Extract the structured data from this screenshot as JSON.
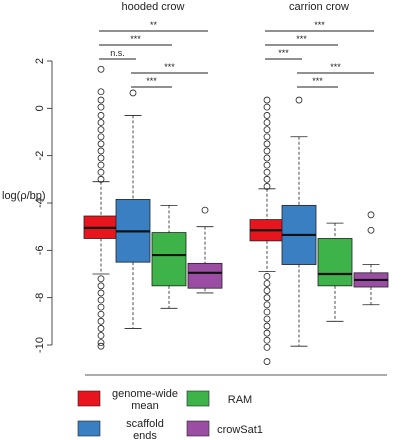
{
  "chart_data": {
    "type": "boxplot",
    "ylabel": "log(ρ/bp)",
    "ylim": [
      -10,
      2
    ],
    "yticks": [
      "2",
      "0",
      "-2",
      "-4",
      "-6",
      "-8",
      "-10"
    ],
    "categories": [
      "genome-wide mean",
      "scaffold ends",
      "RAM",
      "crowSat1"
    ],
    "colors": [
      "#e8141e",
      "#3a7fc1",
      "#3db34a",
      "#9b4da4"
    ],
    "legend": {
      "placement": "bottom",
      "labels": [
        "genome-wide\nmean",
        "scaffold\nends",
        "RAM",
        "crowSat1"
      ]
    },
    "groups": [
      {
        "name": "hooded crow",
        "boxes": [
          {
            "category": "genome-wide mean",
            "q1": -5.5,
            "median": -5.05,
            "q3": -4.55,
            "whisker_low": -7.0,
            "whisker_high": -3.1,
            "outliers_low": [
              -7.2,
              -7.5,
              -7.8,
              -8.1,
              -8.4,
              -8.7,
              -9.0,
              -9.3,
              -9.6,
              -9.9,
              -10.05
            ],
            "outliers_high": [
              -3.0,
              -2.7,
              -2.4,
              -2.1,
              -1.8,
              -1.5,
              -1.2,
              -0.9,
              -0.6,
              -0.3,
              0.05,
              0.35,
              0.7,
              1.65
            ]
          },
          {
            "category": "scaffold ends",
            "q1": -6.5,
            "median": -5.2,
            "q3": -3.85,
            "whisker_low": -9.3,
            "whisker_high": -0.3,
            "outliers_low": [],
            "outliers_high": [
              0.65
            ]
          },
          {
            "category": "RAM",
            "q1": -7.5,
            "median": -6.2,
            "q3": -5.25,
            "whisker_low": -8.45,
            "whisker_high": -4.1,
            "outliers_low": [],
            "outliers_high": []
          },
          {
            "category": "crowSat1",
            "q1": -7.6,
            "median": -6.95,
            "q3": -6.55,
            "whisker_low": -7.8,
            "whisker_high": -5.0,
            "outliers_low": [],
            "outliers_high": [
              -4.3
            ]
          }
        ],
        "significance": [
          {
            "from": "genome-wide mean",
            "to": "crowSat1",
            "label": "**"
          },
          {
            "from": "genome-wide mean",
            "to": "RAM",
            "label": "***"
          },
          {
            "from": "genome-wide mean",
            "to": "scaffold ends",
            "label": "n.s."
          },
          {
            "from": "scaffold ends",
            "to": "crowSat1",
            "label": "***"
          },
          {
            "from": "scaffold ends",
            "to": "RAM",
            "label": "***"
          }
        ]
      },
      {
        "name": "carrion crow",
        "boxes": [
          {
            "category": "genome-wide mean",
            "q1": -5.6,
            "median": -5.15,
            "q3": -4.7,
            "whisker_low": -6.9,
            "whisker_high": -3.4,
            "outliers_low": [
              -7.1,
              -7.4,
              -7.7,
              -8.0,
              -8.3,
              -8.6,
              -8.9,
              -9.2,
              -9.5,
              -9.8,
              -10.1,
              -10.7
            ],
            "outliers_high": [
              -3.3,
              -3.0,
              -2.7,
              -2.4,
              -2.1,
              -1.8,
              -1.5,
              -1.2,
              -0.9,
              -0.6,
              -0.3,
              0.05,
              0.35
            ]
          },
          {
            "category": "scaffold ends",
            "q1": -6.6,
            "median": -5.35,
            "q3": -4.1,
            "whisker_low": -10.05,
            "whisker_high": -1.2,
            "outliers_low": [],
            "outliers_high": [
              0.35
            ]
          },
          {
            "category": "RAM",
            "q1": -7.5,
            "median": -7.0,
            "q3": -5.5,
            "whisker_low": -9.0,
            "whisker_high": -4.85,
            "outliers_low": [],
            "outliers_high": []
          },
          {
            "category": "crowSat1",
            "q1": -7.55,
            "median": -7.25,
            "q3": -6.95,
            "whisker_low": -8.3,
            "whisker_high": -6.6,
            "outliers_low": [],
            "outliers_high": [
              -5.15,
              -4.5
            ]
          }
        ],
        "significance": [
          {
            "from": "genome-wide mean",
            "to": "crowSat1",
            "label": "***"
          },
          {
            "from": "genome-wide mean",
            "to": "RAM",
            "label": "***"
          },
          {
            "from": "genome-wide mean",
            "to": "scaffold ends",
            "label": "***"
          },
          {
            "from": "scaffold ends",
            "to": "crowSat1",
            "label": "***"
          },
          {
            "from": "scaffold ends",
            "to": "RAM",
            "label": "***"
          }
        ]
      }
    ]
  }
}
